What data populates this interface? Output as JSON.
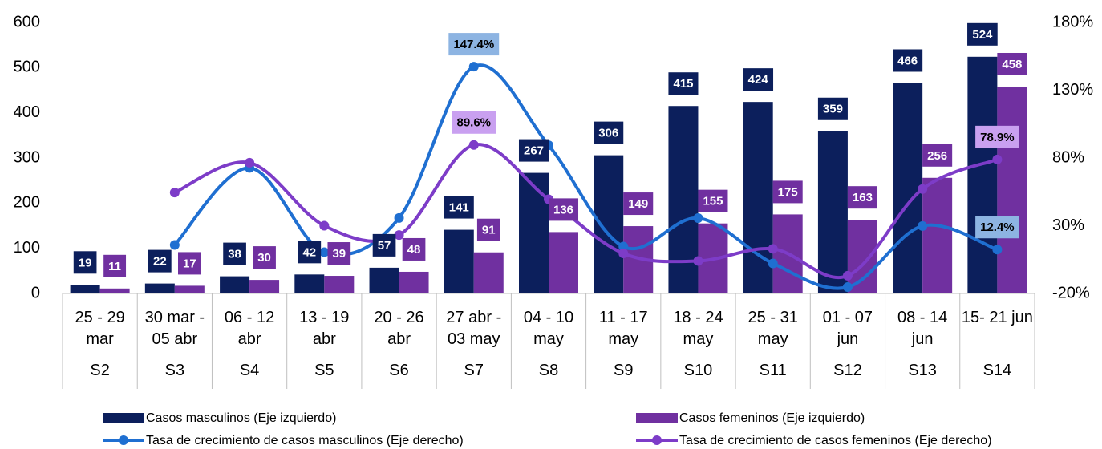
{
  "chart_data": {
    "type": "bar",
    "categories": [
      "25 - 29 mar",
      "30 mar - 05 abr",
      "06 - 12 abr",
      "13 - 19 abr",
      "20 - 26 abr",
      "27 abr - 03 may",
      "04 - 10 may",
      "11 - 17 may",
      "18 - 24 may",
      "25 - 31 may",
      "01 - 07 jun",
      "08 - 14 jun",
      "15- 21 jun"
    ],
    "weeks": [
      "S2",
      "S3",
      "S4",
      "S5",
      "S6",
      "S7",
      "S8",
      "S9",
      "S10",
      "S11",
      "S12",
      "S13",
      "S14"
    ],
    "series": [
      {
        "name": "Casos masculinos (Eje izquierdo)",
        "type": "bar",
        "color": "#0c1f5c",
        "values": [
          19,
          22,
          38,
          42,
          57,
          141,
          267,
          306,
          415,
          424,
          359,
          466,
          524
        ]
      },
      {
        "name": "Casos femeninos (Eje izquierdo)",
        "type": "bar",
        "color": "#7030a0",
        "values": [
          11,
          17,
          30,
          39,
          48,
          91,
          136,
          149,
          155,
          175,
          163,
          256,
          458
        ]
      },
      {
        "name": "Tasa de crecimiento de casos masculinos (Eje derecho)",
        "type": "line",
        "axis": "y2",
        "color": "#1f6fd1",
        "label_color": "#8db4e2",
        "values": [
          null,
          15.8,
          72.7,
          10.5,
          35.7,
          147.4,
          89.4,
          14.6,
          35.6,
          2.2,
          -15.3,
          29.8,
          12.4
        ],
        "value_labels": [
          null,
          null,
          null,
          null,
          null,
          "147.4%",
          null,
          null,
          null,
          null,
          null,
          null,
          "12.4%"
        ]
      },
      {
        "name": "Tasa de crecimiento de casos femeninos (Eje derecho)",
        "type": "line",
        "axis": "y2",
        "color": "#7d3cc8",
        "label_color": "#c9a0f0",
        "values": [
          null,
          54.5,
          76.5,
          30.0,
          23.1,
          89.6,
          49.5,
          9.6,
          4.0,
          12.9,
          -6.9,
          57.1,
          78.9
        ],
        "value_labels": [
          null,
          null,
          null,
          null,
          null,
          "89.6%",
          null,
          null,
          null,
          null,
          null,
          null,
          "78.9%"
        ]
      }
    ],
    "ylim": [
      0,
      600
    ],
    "yticks": [
      0,
      100,
      200,
      300,
      400,
      500,
      600
    ],
    "y2lim": [
      -20,
      180
    ],
    "y2ticks": [
      {
        "value": -20,
        "label": "-20%"
      },
      {
        "value": 30,
        "label": "30%"
      },
      {
        "value": 80,
        "label": "80%"
      },
      {
        "value": 130,
        "label": "130%"
      },
      {
        "value": 180,
        "label": "180%"
      }
    ],
    "grid": false,
    "legend": "bottom"
  }
}
